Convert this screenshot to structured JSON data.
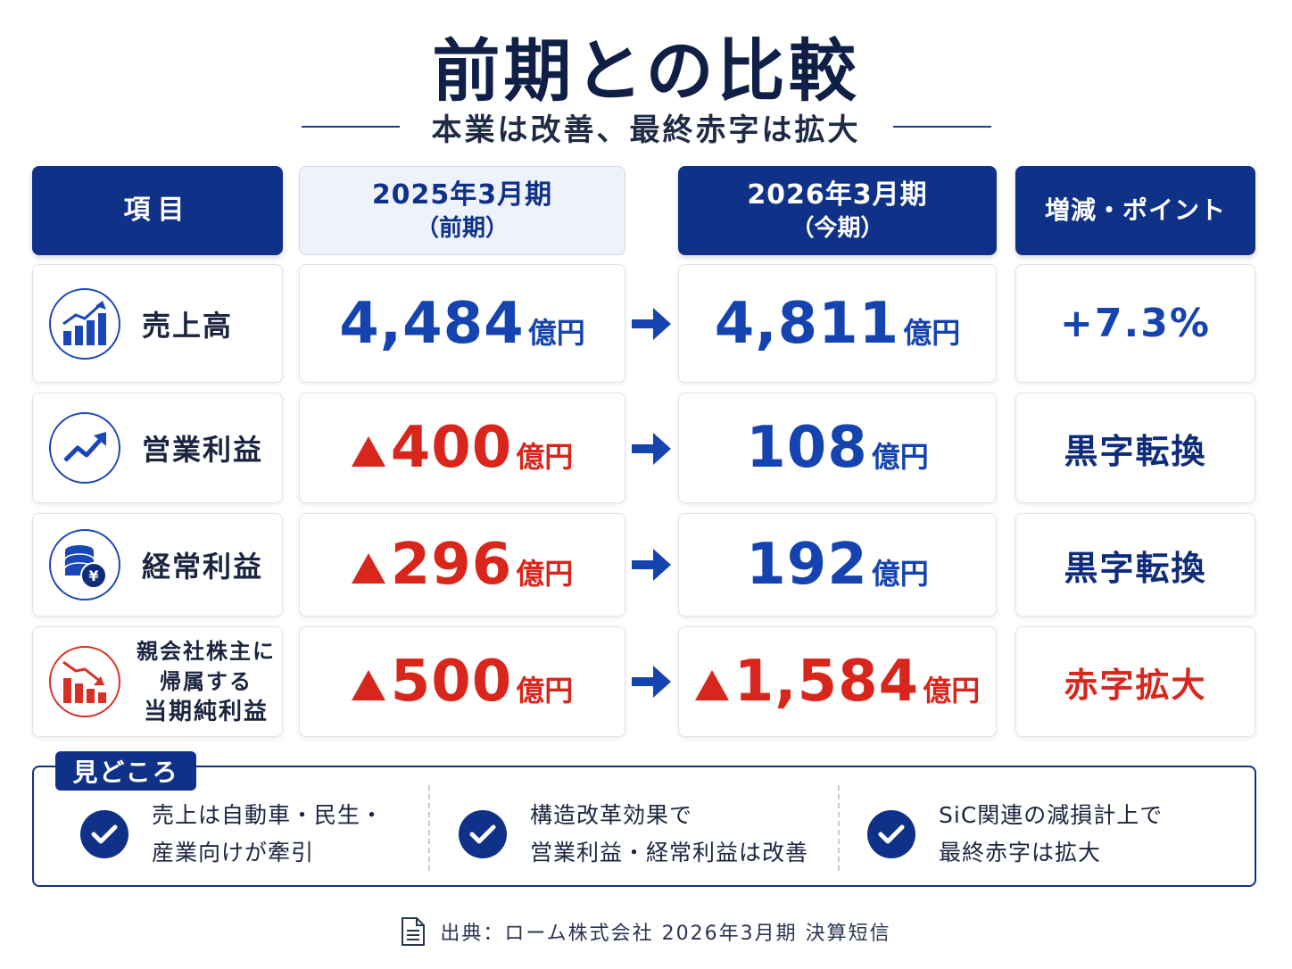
{
  "title": "前期との比較",
  "subtitle": "本業は改善、最終赤字は拡大",
  "headers": {
    "item": "項目",
    "prev_line1": "2025年3月期",
    "prev_line2": "（前期）",
    "curr_line1": "2026年3月期",
    "curr_line2": "（今期）",
    "change": "増減・ポイント"
  },
  "rows": [
    {
      "label": "売上高",
      "icon": "bar-chart-up-icon",
      "prev_value": "4,484",
      "prev_unit": "億円",
      "curr_value": "4,811",
      "curr_unit": "億円",
      "change": "+7.3%"
    },
    {
      "label": "営業利益",
      "icon": "trend-up-icon",
      "prev_value": "400",
      "prev_unit": "億円",
      "curr_value": "108",
      "curr_unit": "億円",
      "change": "黒字転換"
    },
    {
      "label": "経常利益",
      "icon": "coins-yen-icon",
      "prev_value": "296",
      "prev_unit": "億円",
      "curr_value": "192",
      "curr_unit": "億円",
      "change": "黒字転換"
    },
    {
      "label_line1": "親会社株主に",
      "label_line2": "帰属する",
      "label_line3": "当期純利益",
      "icon": "bar-chart-down-icon",
      "prev_value": "500",
      "prev_unit": "億円",
      "curr_value": "1,584",
      "curr_unit": "億円",
      "change": "赤字拡大"
    }
  ],
  "highlights": {
    "tag": "見どころ",
    "points": [
      {
        "line1": "売上は自動車・民生・",
        "line2": "産業向けが牽引"
      },
      {
        "line1": "構造改革効果で",
        "line2": "営業利益・経常利益は改善"
      },
      {
        "line1": "SiC関連の減損計上で",
        "line2": "最終赤字は拡大"
      }
    ]
  },
  "source": "出典：ローム株式会社 2026年3月期 決算短信",
  "colors": {
    "navy": "#0f3188",
    "blue": "#1544b0",
    "red": "#d8261c"
  }
}
